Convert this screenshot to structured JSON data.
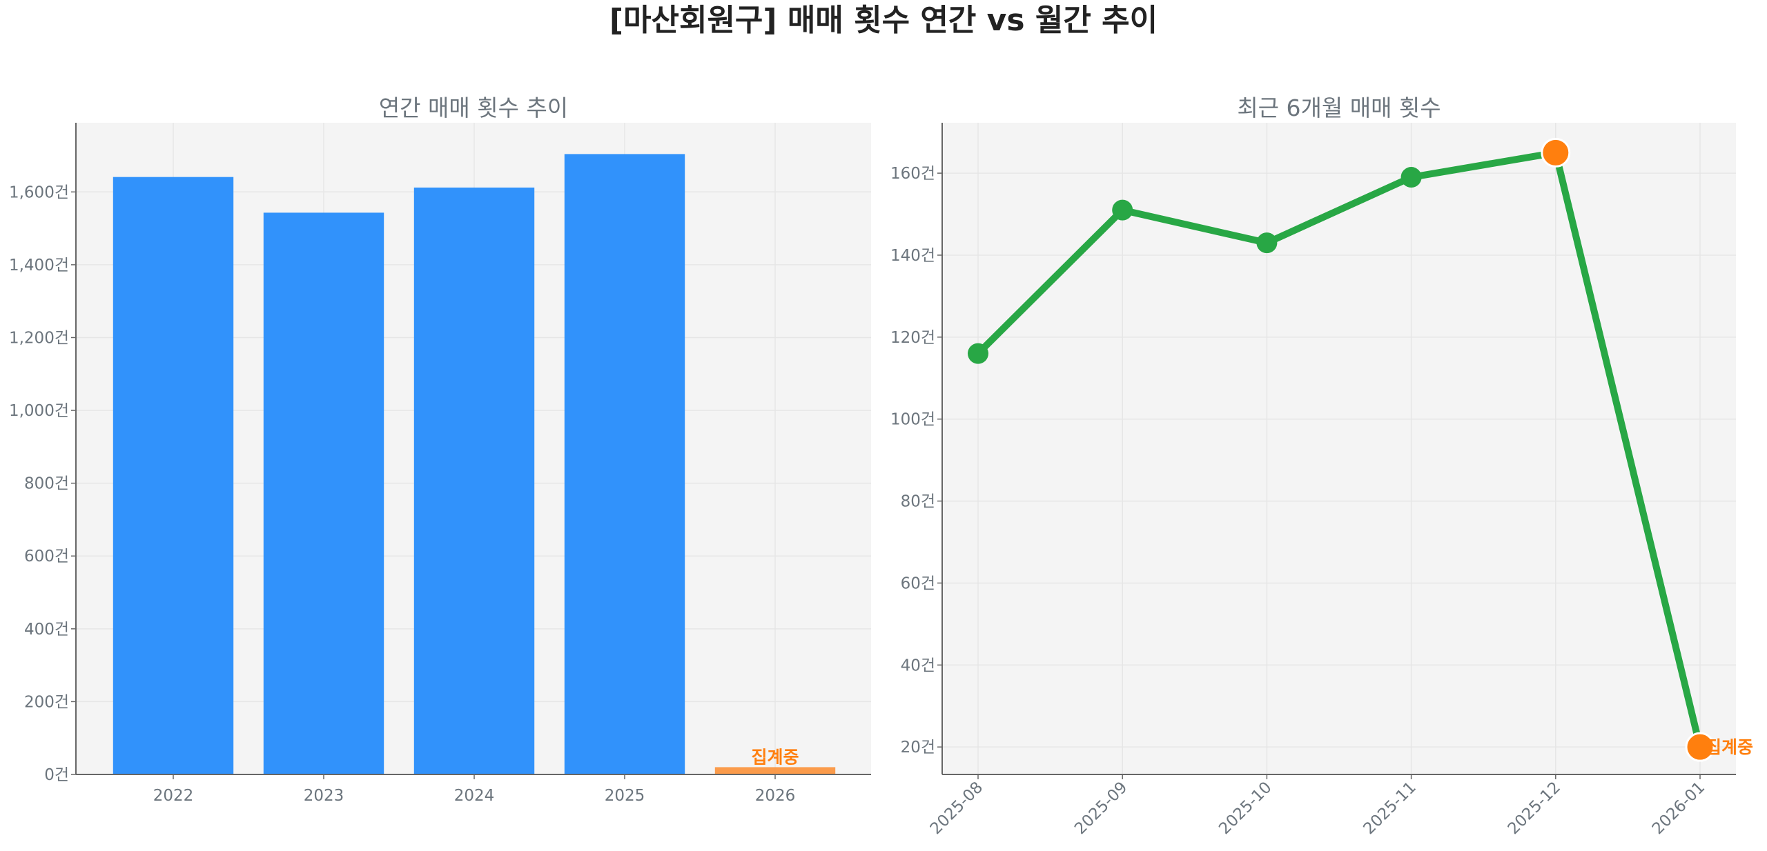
{
  "title": "[마산회원구] 매매 횟수 연간 vs 월간 추이",
  "colors": {
    "bar": "#3192fb",
    "bar_partial": "#fb8b2d",
    "line": "#28a745",
    "highlight": "#ff7f0e",
    "axes_bg": "#f4f4f4",
    "grid": "#e6e6e6",
    "text": "#6c757d"
  },
  "chart_data": [
    {
      "type": "bar",
      "title": "연간 매매 횟수 추이",
      "categories": [
        "2022",
        "2023",
        "2024",
        "2025",
        "2026"
      ],
      "values": [
        1641,
        1543,
        1612,
        1704,
        20
      ],
      "ylim": [
        0,
        1790
      ],
      "yticks": [
        0,
        200,
        400,
        600,
        800,
        1000,
        1200,
        1400,
        1600
      ],
      "ytick_labels": [
        "0건",
        "200건",
        "400건",
        "600건",
        "800건",
        "1,000건",
        "1,200건",
        "1,400건",
        "1,600건"
      ],
      "annotation": {
        "category": "2026",
        "text": "집계중"
      },
      "grid": true
    },
    {
      "type": "line",
      "title": "최근 6개월 매매 횟수",
      "categories": [
        "2025-08",
        "2025-09",
        "2025-10",
        "2025-11",
        "2025-12",
        "2026-01"
      ],
      "values": [
        116,
        151,
        143,
        159,
        165,
        20
      ],
      "highlighted": [
        "2025-12",
        "2026-01"
      ],
      "ylim": [
        13.3,
        172.3
      ],
      "yticks": [
        20,
        40,
        60,
        80,
        100,
        120,
        140,
        160
      ],
      "ytick_labels": [
        "20건",
        "40건",
        "60건",
        "80건",
        "100건",
        "120건",
        "140건",
        "160건"
      ],
      "annotation": {
        "category": "2026-01",
        "text": "집계중"
      },
      "grid": true
    }
  ]
}
